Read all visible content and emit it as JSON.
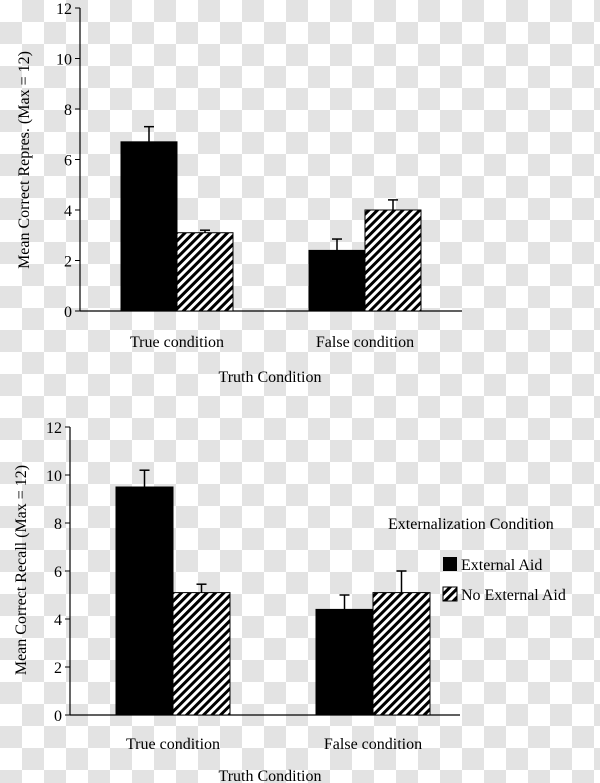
{
  "chart_data": [
    {
      "type": "bar",
      "categories": [
        "True condition",
        "False condition"
      ],
      "series": [
        {
          "values": [
            6.7,
            2.4
          ],
          "errors": [
            0.6,
            0.45
          ],
          "color": "#000000",
          "pattern": "solid"
        },
        {
          "values": [
            3.1,
            4.0
          ],
          "errors": [
            0.1,
            0.4
          ],
          "color": "#000000",
          "pattern": "hatch"
        }
      ],
      "xlabel": "Truth Condition",
      "ylabel": "Mean Correct Repres. (Max = 12)",
      "ylim": [
        0,
        12
      ],
      "yticks": [
        0,
        2,
        4,
        6,
        8,
        10,
        12
      ],
      "grid": false
    },
    {
      "type": "bar",
      "categories": [
        "True condition",
        "False condition"
      ],
      "series": [
        {
          "name": "External Aid",
          "values": [
            9.5,
            4.4
          ],
          "errors": [
            0.7,
            0.6
          ],
          "color": "#000000",
          "pattern": "solid"
        },
        {
          "name": "No External Aid",
          "values": [
            5.1,
            5.1
          ],
          "errors": [
            0.35,
            0.9
          ],
          "color": "#000000",
          "pattern": "hatch"
        }
      ],
      "xlabel": "Truth Condition",
      "ylabel": "Mean Correct Recall (Max = 12)",
      "ylim": [
        0,
        12
      ],
      "yticks": [
        0,
        2,
        4,
        6,
        8,
        10,
        12
      ],
      "grid": false,
      "legend": {
        "title": "Externalization Condition",
        "position": "right"
      }
    }
  ]
}
